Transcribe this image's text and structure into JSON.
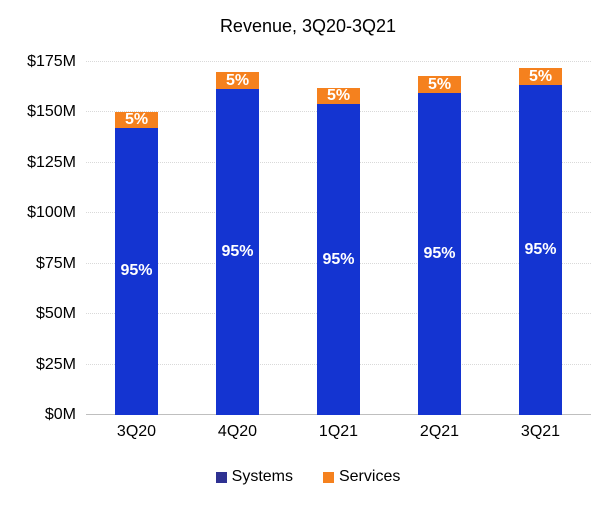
{
  "chart_data": {
    "type": "bar",
    "stacked": true,
    "title": "Revenue, 3Q20-3Q21",
    "categories": [
      "3Q20",
      "4Q20",
      "1Q21",
      "2Q21",
      "3Q21"
    ],
    "series": [
      {
        "name": "Systems",
        "color": "#1434D1",
        "values": [
          142.5,
          161.5,
          154.0,
          159.5,
          163.5
        ],
        "segment_labels": [
          "95%",
          "95%",
          "95%",
          "95%",
          "95%"
        ]
      },
      {
        "name": "Services",
        "color": "#F5811E",
        "values": [
          7.5,
          8.5,
          8.0,
          8.5,
          8.5
        ],
        "segment_labels": [
          "5%",
          "5%",
          "5%",
          "5%",
          "5%"
        ]
      }
    ],
    "totals_estimated_millions": [
      150,
      170,
      162,
      168,
      172
    ],
    "xlabel": "",
    "ylabel": "",
    "ylim": [
      0,
      175
    ],
    "ytick_step": 25,
    "ytick_labels": [
      "$0M",
      "$25M",
      "$50M",
      "$75M",
      "$100M",
      "$125M",
      "$150M",
      "$175M"
    ],
    "grid": true,
    "legend_position": "bottom"
  },
  "legend": {
    "items": [
      {
        "label": "Systems",
        "marker_color": "#2E3192"
      },
      {
        "label": "Services",
        "marker_color": "#F5811E"
      }
    ]
  },
  "colors": {
    "background": "#FFFFFF",
    "text": "#000000",
    "gridline": "#D9D9D9",
    "axis_line": "#BFBFBF",
    "bar_label_text": "#FFFFFF"
  }
}
